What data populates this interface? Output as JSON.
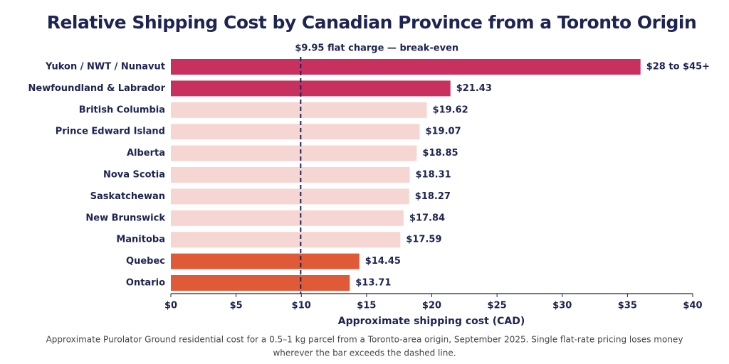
{
  "chart_data": {
    "type": "barh",
    "title": "Relative Shipping Cost by Canadian Province from a Toronto Origin",
    "categories": [
      "Yukon / NWT / Nunavut",
      "Newfoundland & Labrador",
      "British Columbia",
      "Prince Edward Island",
      "Alberta",
      "Nova Scotia",
      "Saskatchewan",
      "New Brunswick",
      "Manitoba",
      "Quebec",
      "Ontario"
    ],
    "values": [
      36,
      21.43,
      19.62,
      19.07,
      18.85,
      18.31,
      18.27,
      17.84,
      17.59,
      14.45,
      13.71
    ],
    "value_labels": [
      "$28 to $45+",
      "$21.43",
      "$19.62",
      "$19.07",
      "$18.85",
      "$18.31",
      "$18.27",
      "$17.84",
      "$17.59",
      "$14.45",
      "$13.71"
    ],
    "colors": [
      "#c8305f",
      "#c8305f",
      "#f6d6d3",
      "#f6d6d3",
      "#f6d6d3",
      "#f6d6d3",
      "#f6d6d3",
      "#f6d6d3",
      "#f6d6d3",
      "#e05a38",
      "#e05a38"
    ],
    "xlim": [
      0,
      40
    ],
    "xticks": [
      {
        "value": 0,
        "label": "$0"
      },
      {
        "value": 5,
        "label": "$5"
      },
      {
        "value": 10,
        "label": "$10"
      },
      {
        "value": 15,
        "label": "$15"
      },
      {
        "value": 20,
        "label": "$20"
      },
      {
        "value": 25,
        "label": "$25"
      },
      {
        "value": 30,
        "label": "$30"
      },
      {
        "value": 35,
        "label": "$35"
      },
      {
        "value": 40,
        "label": "$40"
      }
    ],
    "xlabel": "Approximate shipping cost (CAD)",
    "reference_line": {
      "value": 9.95,
      "label": "$9.95 flat charge — break-even"
    },
    "caption": [
      "Approximate Purolator Ground residential cost for a 0.5–1 kg parcel from a Toronto-area origin, September 2025. Single flat-rate pricing loses money",
      "wherever the bar exceeds the dashed line."
    ]
  }
}
